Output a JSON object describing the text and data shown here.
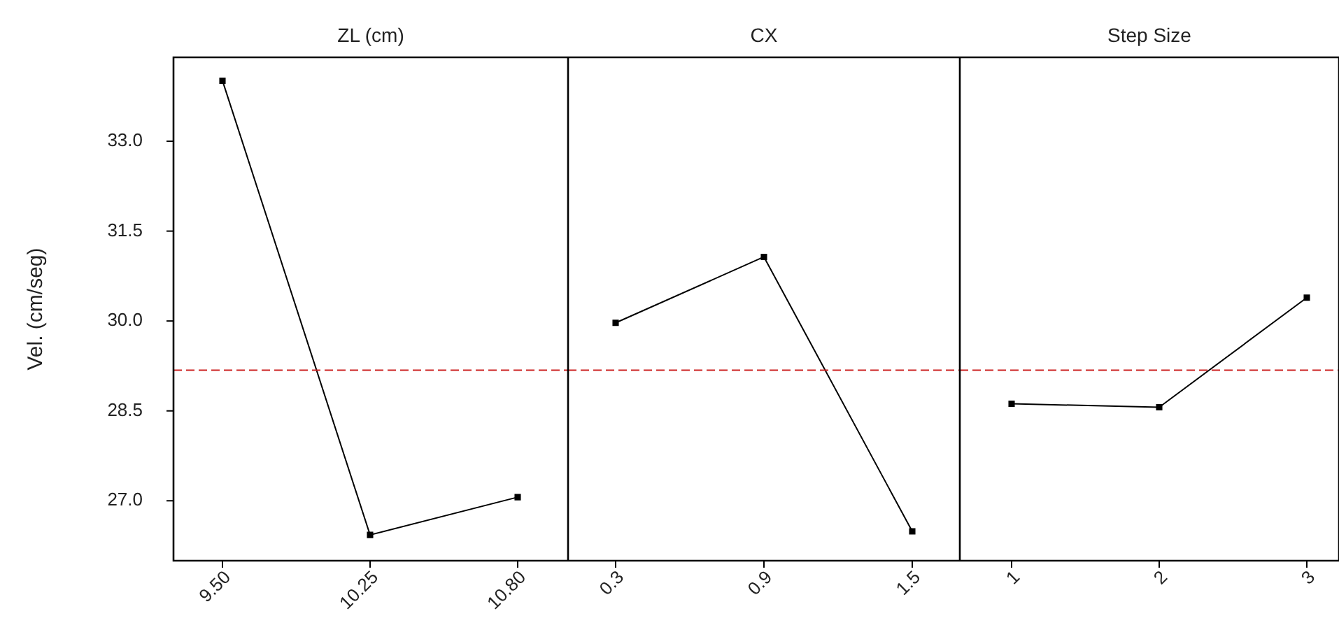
{
  "chart_data": [
    {
      "type": "line",
      "title": "ZL (cm)",
      "ylabel": "Vel. (cm/seg)",
      "categories": [
        "9.50",
        "10.25",
        "10.80"
      ],
      "series": [
        {
          "color": "#000000",
          "values": [
            34.01,
            26.43,
            27.06
          ]
        }
      ],
      "ylim": [
        26.0,
        34.4
      ],
      "yticks": [
        {
          "value": 27,
          "label": "27.0"
        },
        28.5,
        {
          "value": 30,
          "label": "30.0"
        },
        31.5,
        {
          "value": 33,
          "label": "33.0"
        }
      ],
      "ref_lines": [
        {
          "axis": "y",
          "value": 29.18,
          "color": "#cc2222",
          "line_style": "dashed"
        }
      ],
      "marker": "square",
      "line_style": "solid",
      "legend": false
    },
    {
      "type": "line",
      "title": "CX",
      "categories": [
        "0.3",
        "0.9",
        "1.5"
      ],
      "series": [
        {
          "color": "#000000",
          "values": [
            29.97,
            31.07,
            26.49
          ]
        }
      ],
      "ylim": [
        26.0,
        34.4
      ],
      "tick_labels": "x",
      "ref_lines": [
        {
          "axis": "y",
          "value": 29.18,
          "color": "#cc2222",
          "line_style": "dashed"
        }
      ],
      "marker": "square",
      "line_style": "solid",
      "legend": false
    },
    {
      "type": "line",
      "title": "Step Size",
      "categories": [
        "1",
        "2",
        "3"
      ],
      "series": [
        {
          "color": "#000000",
          "values": [
            28.62,
            28.56,
            30.39
          ]
        }
      ],
      "ylim": [
        26.0,
        34.4
      ],
      "tick_labels": "x",
      "ref_lines": [
        {
          "axis": "y",
          "value": 29.18,
          "color": "#cc2222",
          "line_style": "dashed"
        }
      ],
      "marker": "square",
      "line_style": "solid",
      "legend": false
    }
  ]
}
